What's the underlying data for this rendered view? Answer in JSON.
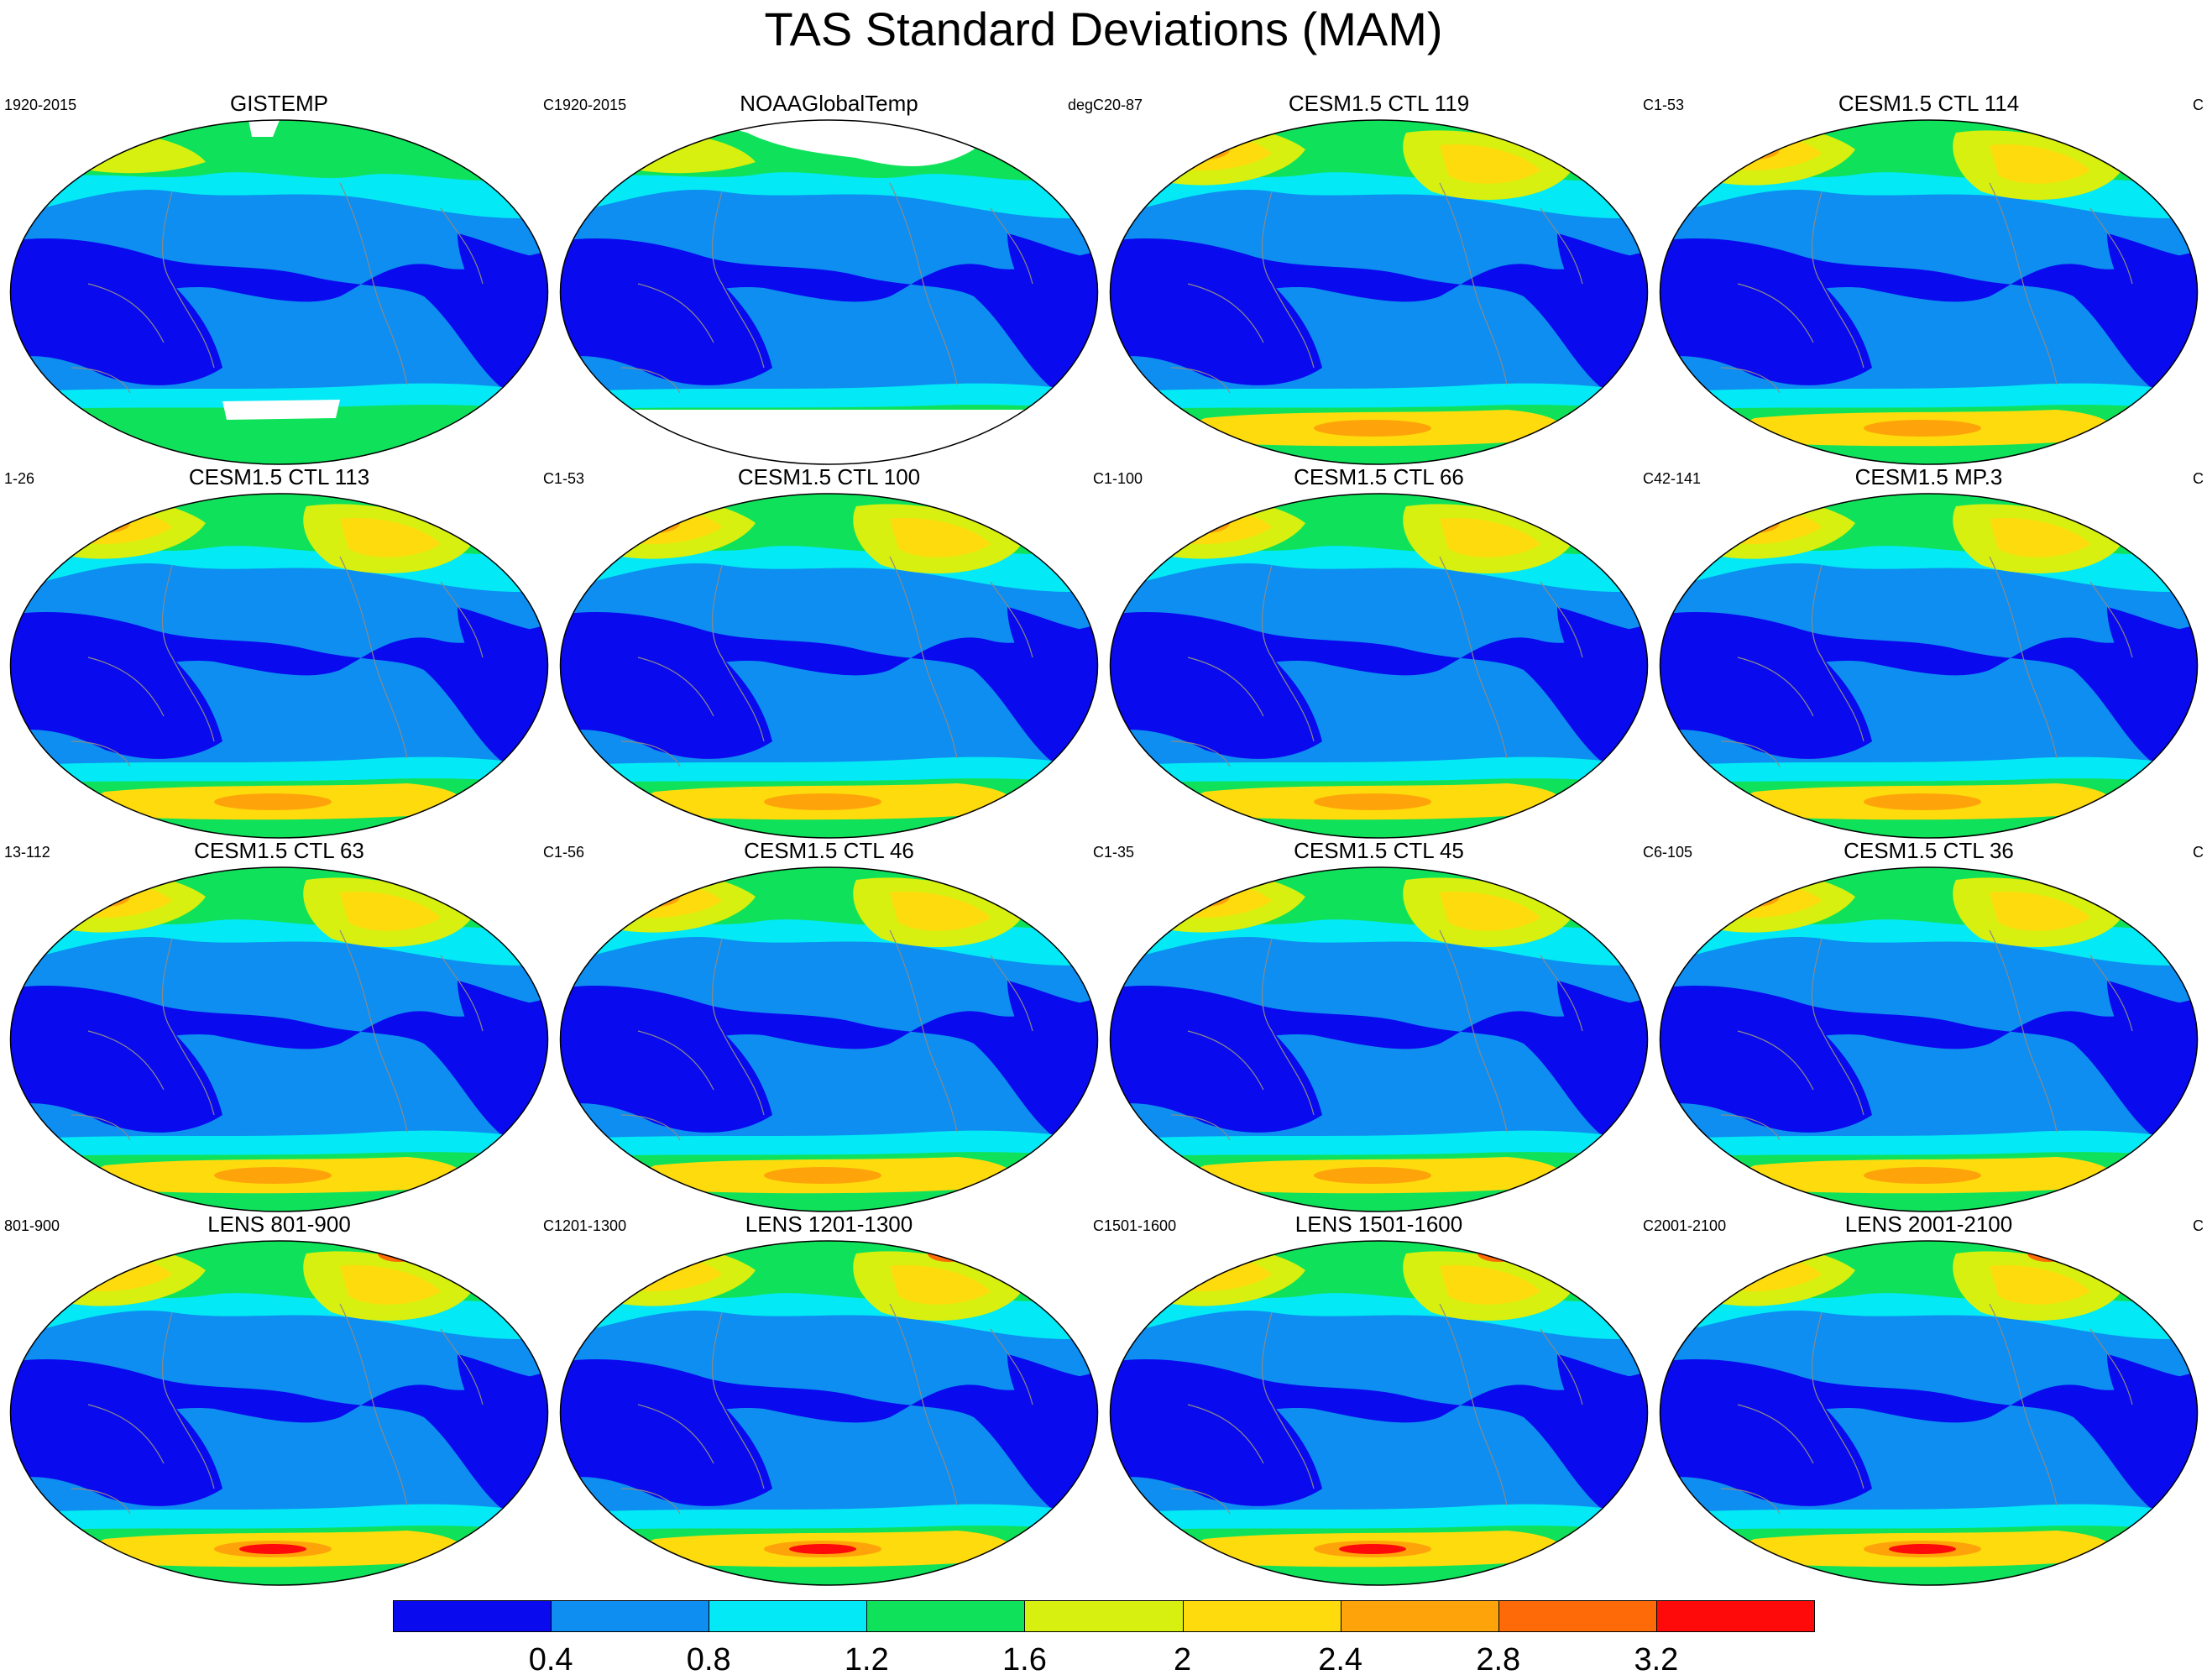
{
  "title": "TAS Standard Deviations (MAM)",
  "panels": [
    {
      "title": "GISTEMP",
      "left": "1920-2015",
      "right": "C",
      "variant": "gis"
    },
    {
      "title": "NOAAGlobalTemp",
      "left": "1920-2015",
      "right": "degC",
      "variant": "noaa"
    },
    {
      "title": "CESM1.5 CTL 119",
      "left": "20-87",
      "right": "C",
      "variant": "model"
    },
    {
      "title": "CESM1.5 CTL 114",
      "left": "1-53",
      "right": "C",
      "variant": "model"
    },
    {
      "title": "CESM1.5 CTL 113",
      "left": "1-26",
      "right": "C",
      "variant": "model"
    },
    {
      "title": "CESM1.5 CTL 100",
      "left": "1-53",
      "right": "C",
      "variant": "model"
    },
    {
      "title": "CESM1.5 CTL 66",
      "left": "1-100",
      "right": "C",
      "variant": "model"
    },
    {
      "title": "CESM1.5 MP.3",
      "left": "42-141",
      "right": "C",
      "variant": "model"
    },
    {
      "title": "CESM1.5 CTL 63",
      "left": "13-112",
      "right": "C",
      "variant": "model"
    },
    {
      "title": "CESM1.5 CTL 46",
      "left": "1-56",
      "right": "C",
      "variant": "model"
    },
    {
      "title": "CESM1.5 CTL 45",
      "left": "1-35",
      "right": "C",
      "variant": "model"
    },
    {
      "title": "CESM1.5 CTL 36",
      "left": "6-105",
      "right": "C",
      "variant": "model"
    },
    {
      "title": "LENS 801-900",
      "left": "801-900",
      "right": "C",
      "variant": "lens"
    },
    {
      "title": "LENS 1201-1300",
      "left": "1201-1300",
      "right": "C",
      "variant": "lens"
    },
    {
      "title": "LENS 1501-1600",
      "left": "1501-1600",
      "right": "C",
      "variant": "lens"
    },
    {
      "title": "LENS 2001-2100",
      "left": "2001-2100",
      "right": "C",
      "variant": "lens"
    }
  ],
  "colorbar": {
    "colors": [
      "#0a0aee",
      "#0d8ef0",
      "#03e9f5",
      "#0fe25a",
      "#d7f00f",
      "#fedb0d",
      "#fea40a",
      "#fe6a08",
      "#fe0a0a"
    ],
    "labels": [
      "0.4",
      "0.8",
      "1.2",
      "1.6",
      "2",
      "2.4",
      "2.8",
      "3.2"
    ]
  }
}
